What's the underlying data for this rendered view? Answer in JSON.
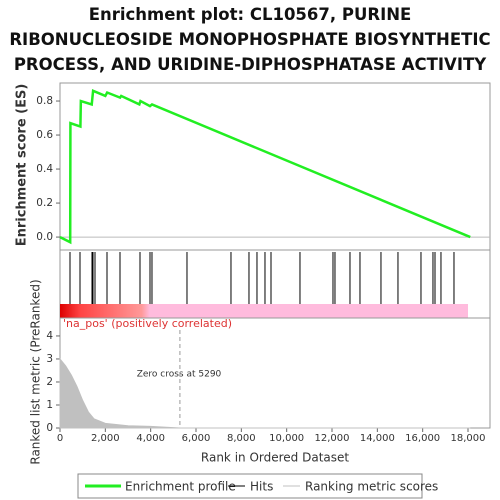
{
  "chart_data": [
    {
      "type": "line",
      "title": "Enrichment plot: CL10567, PURINE RIBONUCLEOSIDE MONOPHOSPHATE BIOSYNTHETIC PROCESS, AND URIDINE-DIPHOSPHATASE ACTIVITY",
      "ylabel": "Enrichment score (ES)",
      "x": [
        0,
        450,
        460,
        900,
        920,
        1400,
        1460,
        2000,
        2080,
        2650,
        2700,
        3500,
        3550,
        3970,
        4060,
        18100
      ],
      "series": [
        {
          "name": "Enrichment profile",
          "color": "#22ee22",
          "values": [
            0,
            -0.03,
            0.67,
            0.65,
            0.8,
            0.78,
            0.86,
            0.83,
            0.85,
            0.82,
            0.83,
            0.78,
            0.8,
            0.77,
            0.78,
            0
          ]
        }
      ],
      "ylim": [
        -0.076,
        0.906
      ],
      "yticks": [
        {
          "value": 0,
          "label": "0.0"
        },
        0.2,
        0.4,
        0.6,
        0.8
      ]
    },
    {
      "type": "rug",
      "name": "Hits",
      "color": "#000000",
      "values": [
        441,
        882,
        1412,
        1456,
        1544,
        2073,
        2647,
        3529,
        3970,
        4058,
        5602,
        7543,
        8337,
        8690,
        9043,
        9308,
        10587,
        12043,
        12131,
        12793,
        13234,
        14160,
        14910,
        15925,
        16454,
        16543,
        16807,
        17381
      ]
    },
    {
      "type": "area",
      "xlabel": "Rank in Ordered Dataset",
      "ylabel": "Ranked list metric (PreRanked)",
      "annotations": [
        "'na_pos' (positively correlated)",
        "Zero cross at 5290"
      ],
      "zero_cross": 5290,
      "x": [
        0,
        250,
        500,
        750,
        1000,
        1250,
        1500,
        2000,
        3000,
        4000,
        5290,
        18100
      ],
      "series": [
        {
          "name": "Ranking metric scores",
          "color": "#c0c0c0",
          "values": [
            3.0,
            2.7,
            2.3,
            1.8,
            1.2,
            0.7,
            0.4,
            0.2,
            0.1,
            0.07,
            0,
            0
          ]
        }
      ],
      "ylim": [
        0,
        4.78
      ],
      "yticks": [
        0,
        1,
        2,
        3,
        4
      ],
      "xlim": [
        0,
        18970
      ],
      "xticks": [
        0,
        {
          "value": 2000,
          "label": "2,000"
        },
        {
          "value": 4000,
          "label": "4,000"
        },
        {
          "value": 6000,
          "label": "6,000"
        },
        {
          "value": 8000,
          "label": "8,000"
        },
        {
          "value": 10000,
          "label": "10,000"
        },
        {
          "value": 12000,
          "label": "12,000"
        },
        {
          "value": 14000,
          "label": "14,000"
        },
        {
          "value": 16000,
          "label": "16,000"
        },
        {
          "value": 18000,
          "label": "18,000"
        }
      ]
    }
  ]
}
